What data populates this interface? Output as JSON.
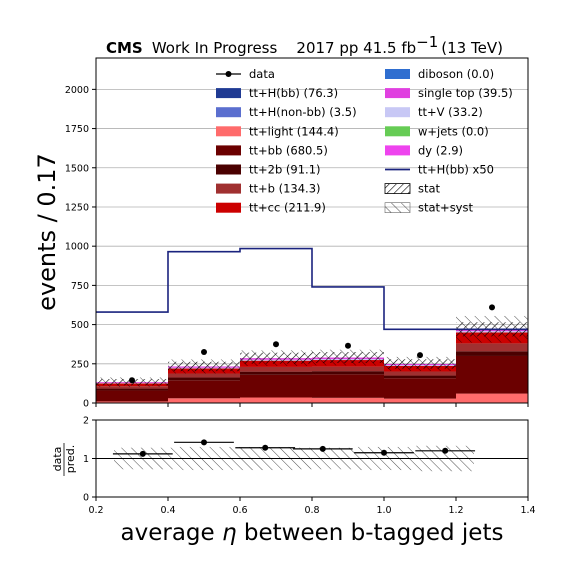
{
  "title": {
    "experiment": "CMS",
    "status": "Work In Progress",
    "lumi": "2017 pp 41.5 fb",
    "lumi_exp": "−1",
    "energy": "(13 TeV)"
  },
  "chart_data": [
    {
      "type": "bar",
      "stacked": true,
      "xlabel_prefix": "average ",
      "xlabel_var": "η",
      "xlabel_suffix": " between b-tagged jets",
      "ylabel": "events / 0.17",
      "xlim": [
        0.2,
        1.4
      ],
      "ylim": [
        0,
        2200
      ],
      "x_ticks": [
        0.2,
        0.4,
        0.6,
        0.8,
        1.0,
        1.2,
        1.4
      ],
      "y_ticks": [
        0,
        250,
        500,
        750,
        1000,
        1250,
        1500,
        1750,
        2000
      ],
      "bin_edges": [
        0.2,
        0.4,
        0.6,
        0.8,
        1.0,
        1.2,
        1.4
      ],
      "grid": "horizontal",
      "legend_position": "top-right, two columns",
      "series": [
        {
          "name": "tt+light (144.4)",
          "color": "#ff6b6b",
          "values": [
            10,
            30,
            35,
            33,
            28,
            60
          ]
        },
        {
          "name": "tt+bb (680.5)",
          "color": "#6b0000",
          "values": [
            70,
            115,
            145,
            150,
            130,
            240
          ]
        },
        {
          "name": "tt+2b (91.1)",
          "color": "#4a0000",
          "values": [
            12,
            18,
            20,
            20,
            17,
            30
          ]
        },
        {
          "name": "tt+b (134.3)",
          "color": "#a03030",
          "values": [
            15,
            25,
            30,
            29,
            26,
            50
          ]
        },
        {
          "name": "tt+cc (211.9)",
          "color": "#cc0000",
          "values": [
            18,
            32,
            40,
            42,
            35,
            70
          ]
        },
        {
          "name": "tt+V (33.2)",
          "color": "#c8c8f5",
          "values": [
            3,
            5,
            6,
            6,
            5,
            8
          ]
        },
        {
          "name": "single top (39.5)",
          "color": "#e040e0",
          "values": [
            5,
            8,
            10,
            10,
            8,
            12
          ]
        }
      ],
      "data_points": {
        "name": "data",
        "x": [
          0.3,
          0.5,
          0.7,
          0.9,
          1.1,
          1.3
        ],
        "y": [
          145,
          325,
          375,
          365,
          305,
          610
        ]
      },
      "signal_line": {
        "name": "tt+H(bb) x50",
        "color": "#1a237e",
        "values": [
          580,
          965,
          985,
          740,
          470,
          470
        ]
      },
      "stat_band_halfwidth": [
        20,
        30,
        35,
        35,
        30,
        45
      ],
      "syst_band_halfwidth": [
        30,
        45,
        50,
        50,
        45,
        85
      ],
      "legend": [
        {
          "label": "data",
          "kind": "point"
        },
        {
          "label": "tt+H(bb) (76.3)",
          "kind": "patch",
          "color": "#1f3a93"
        },
        {
          "label": "tt+H(non-bb) (3.5)",
          "kind": "patch",
          "color": "#5b6fcf"
        },
        {
          "label": "tt+light (144.4)",
          "kind": "patch",
          "color": "#ff6b6b"
        },
        {
          "label": "tt+bb (680.5)",
          "kind": "patch",
          "color": "#6b0000"
        },
        {
          "label": "tt+2b (91.1)",
          "kind": "patch",
          "color": "#4a0000"
        },
        {
          "label": "tt+b (134.3)",
          "kind": "patch",
          "color": "#a03030"
        },
        {
          "label": "tt+cc (211.9)",
          "kind": "patch",
          "color": "#cc0000"
        },
        {
          "label": "diboson (0.0)",
          "kind": "patch",
          "color": "#2f6ed0"
        },
        {
          "label": "single top (39.5)",
          "kind": "patch",
          "color": "#e040e0"
        },
        {
          "label": "tt+V (33.2)",
          "kind": "patch",
          "color": "#c8c8f5"
        },
        {
          "label": "w+jets (0.0)",
          "kind": "patch",
          "color": "#66cc55"
        },
        {
          "label": "dy (2.9)",
          "kind": "patch",
          "color": "#ee44ee"
        },
        {
          "label": "tt+H(bb) x50",
          "kind": "line",
          "color": "#1a237e"
        },
        {
          "label": "stat",
          "kind": "hatch-dense"
        },
        {
          "label": "stat+syst",
          "kind": "hatch-sparse"
        }
      ]
    },
    {
      "type": "scatter",
      "ylabel_top": "data",
      "ylabel_bottom": "pred.",
      "xlim": [
        0.2,
        1.4
      ],
      "ylim": [
        0,
        2
      ],
      "y_ticks": [
        0,
        1,
        2
      ],
      "reference_line": 1,
      "ratio_points": {
        "x": [
          0.33,
          0.5,
          0.67,
          0.83,
          1.0,
          1.17
        ],
        "y": [
          1.12,
          1.42,
          1.28,
          1.25,
          1.15,
          1.2
        ],
        "x_halfwidth": [
          0.083,
          0.083,
          0.083,
          0.083,
          0.083,
          0.083
        ]
      },
      "band": {
        "x_edges": [
          0.25,
          0.42,
          0.58,
          0.75,
          0.92,
          1.08,
          1.25
        ],
        "halfwidth": [
          0.28,
          0.3,
          0.3,
          0.28,
          0.3,
          0.33
        ]
      }
    }
  ]
}
